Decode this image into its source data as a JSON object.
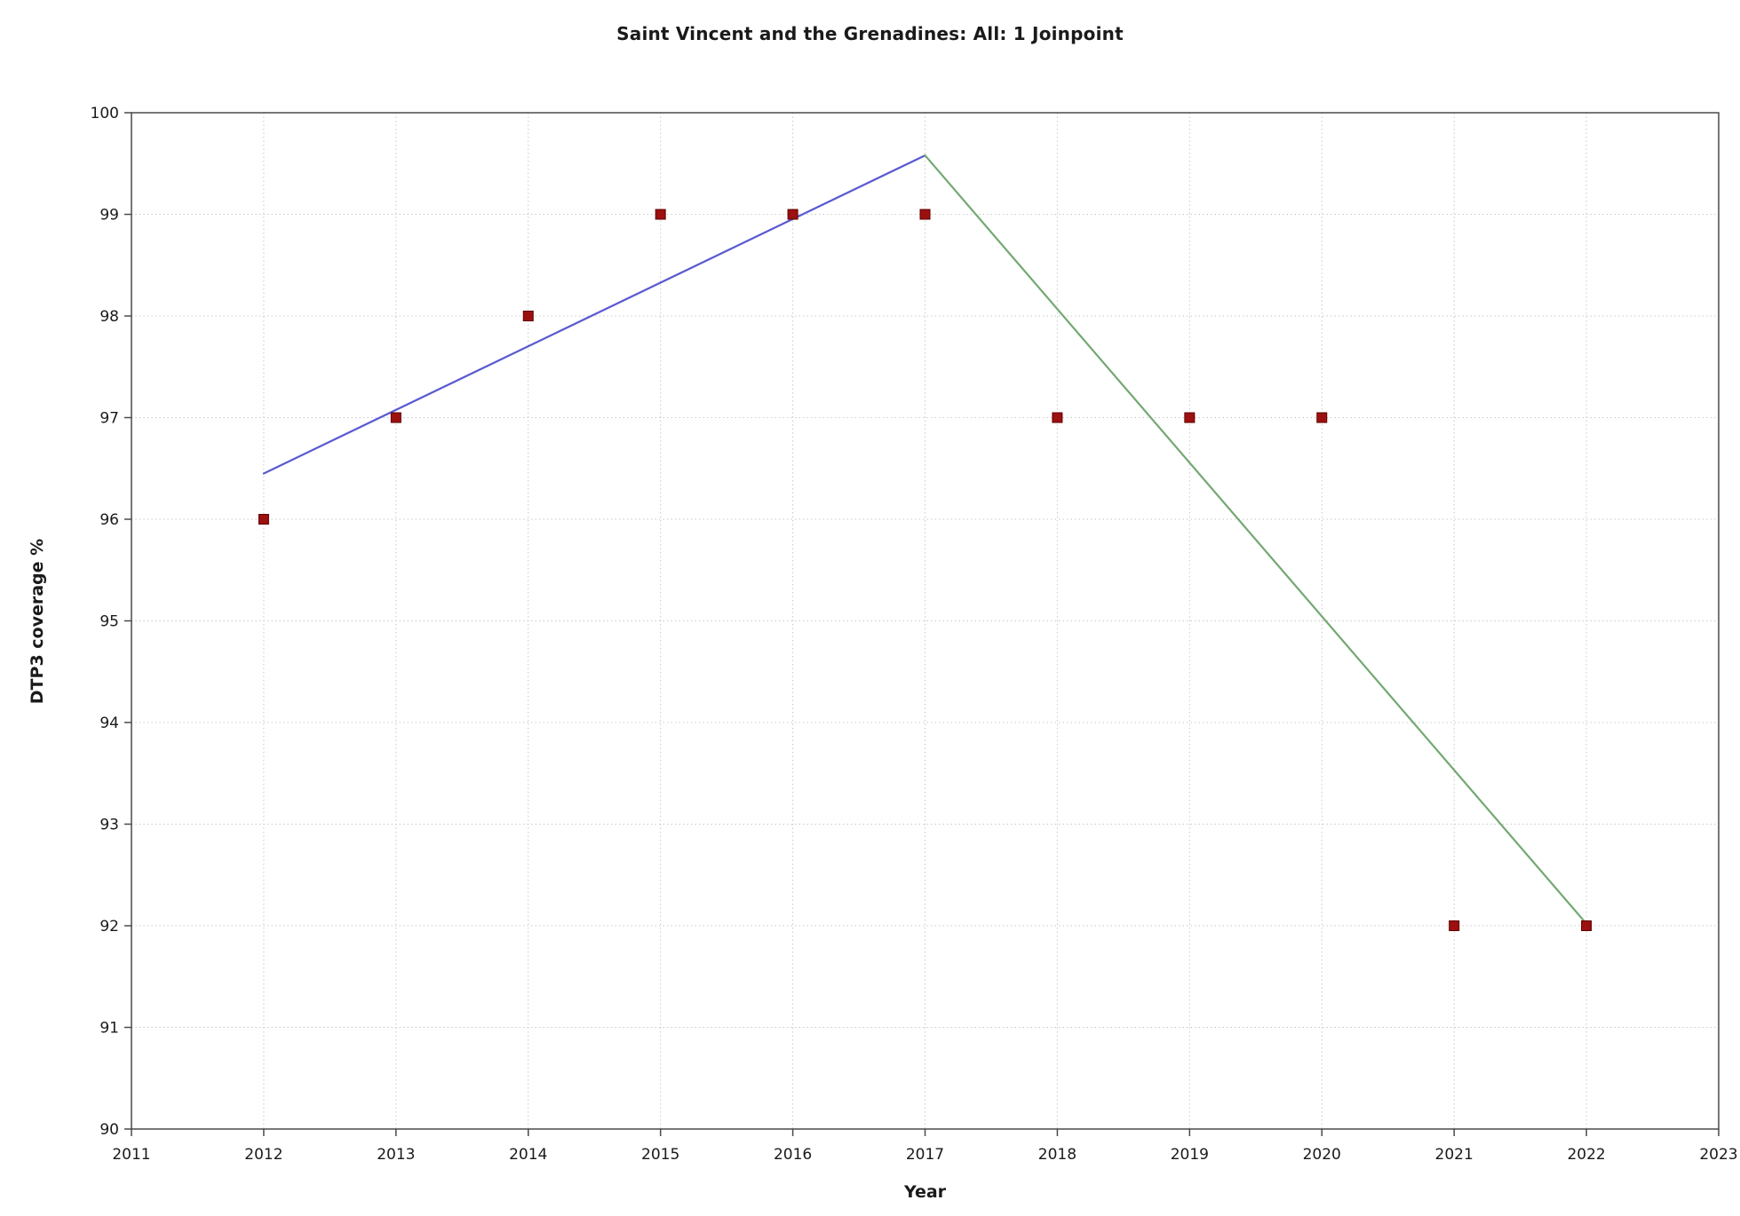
{
  "chart_data": {
    "type": "scatter",
    "title": "Saint Vincent and the Grenadines: All: 1 Joinpoint",
    "xlabel": "Year",
    "ylabel": "DTP3 coverage %",
    "xlim": [
      2011,
      2023
    ],
    "ylim": [
      90,
      100
    ],
    "x_ticks": [
      2011,
      2012,
      2013,
      2014,
      2015,
      2016,
      2017,
      2018,
      2019,
      2020,
      2021,
      2022,
      2023
    ],
    "y_ticks": [
      90,
      91,
      92,
      93,
      94,
      95,
      96,
      97,
      98,
      99,
      100
    ],
    "grid": true,
    "legend_position": "none",
    "colors": {
      "frame": "#4a4a4a",
      "grid": "#c9c9c9",
      "tick_label": "#1a1a1a",
      "background": "#ffffff"
    },
    "observed": {
      "name": "observed-dtp3-coverage",
      "marker": "square",
      "color": "#9c1010",
      "edge_color": "#5e0000",
      "x": [
        2012,
        2013,
        2014,
        2015,
        2016,
        2017,
        2018,
        2019,
        2020,
        2021,
        2022
      ],
      "y": [
        96,
        97,
        98,
        99,
        99,
        99,
        97,
        97,
        97,
        92,
        92
      ]
    },
    "trend_segments": [
      {
        "name": "segment-1-rising",
        "color": "#5a5ad2",
        "x": [
          2012,
          2017
        ],
        "y": [
          96.45,
          99.58
        ]
      },
      {
        "name": "segment-2-falling",
        "color": "#73a873",
        "x": [
          2017,
          2022
        ],
        "y": [
          99.58,
          92.02
        ]
      }
    ],
    "joinpoint_year": 2017
  }
}
